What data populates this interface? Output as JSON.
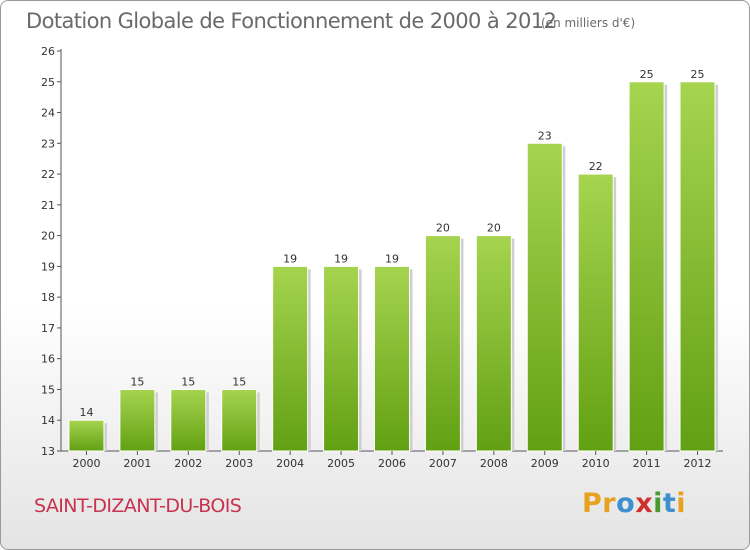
{
  "title": "Dotation Globale de Fonctionnement de 2000 à 2012",
  "subtitle": "(en milliers d'€)",
  "commune": "SAINT-DIZANT-DU-BOIS",
  "logo": {
    "letters": [
      "P",
      "r",
      "o",
      "x",
      "i",
      "t",
      "i"
    ],
    "colors": [
      "#e8a020",
      "#e8a020",
      "#3d8fd0",
      "#d0312d",
      "#4a9b2e",
      "#3d8fd0",
      "#e8a020"
    ]
  },
  "colors": {
    "bar_light": "#a6d44f",
    "bar_dark": "#62a013",
    "title": "#6a6a6a",
    "commune": "#c8324e"
  },
  "chart_data": {
    "type": "bar",
    "categories": [
      "2000",
      "2001",
      "2002",
      "2003",
      "2004",
      "2005",
      "2006",
      "2007",
      "2008",
      "2009",
      "2010",
      "2011",
      "2012"
    ],
    "values": [
      14,
      15,
      15,
      15,
      19,
      19,
      19,
      20,
      20,
      23,
      22,
      25,
      25
    ],
    "ylim": [
      13,
      26
    ],
    "yticks": [
      13,
      14,
      15,
      16,
      17,
      18,
      19,
      20,
      21,
      22,
      23,
      24,
      25,
      26
    ],
    "grid": false,
    "legend": "none"
  }
}
